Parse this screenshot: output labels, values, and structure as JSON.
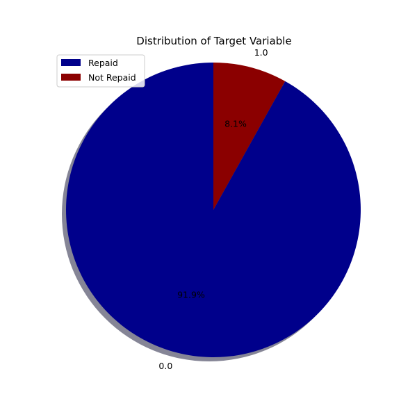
{
  "chart_data": {
    "type": "pie",
    "title": "Distribution of Target Variable",
    "slices": [
      {
        "label": "1.0",
        "legend": "Not Repaid",
        "value": 8.1,
        "pct_label": "8.1%",
        "color": "#8b0000"
      },
      {
        "label": "0.0",
        "legend": "Repaid",
        "value": 91.9,
        "pct_label": "91.9%",
        "color": "#00008b"
      }
    ],
    "legend": {
      "placement": "upper-left",
      "entries": [
        {
          "text": "Repaid",
          "color": "#00008b"
        },
        {
          "text": "Not Repaid",
          "color": "#8b0000"
        }
      ]
    },
    "shadow": true,
    "start_angle_deg": 90
  }
}
